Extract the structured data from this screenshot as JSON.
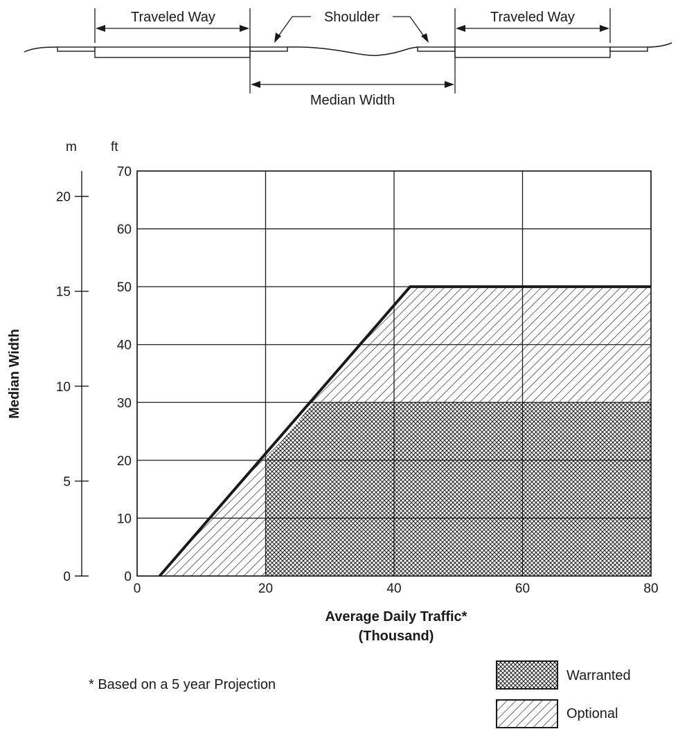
{
  "cross_section": {
    "left_roadway_label": "Traveled Way",
    "shoulder_label": "Shoulder",
    "right_roadway_label": "Traveled Way",
    "median_label": "Median Width"
  },
  "chart_data": {
    "type": "area",
    "title": "",
    "xlabel_line1": "Average Daily Traffic*",
    "xlabel_line2": "(Thousand)",
    "ylabel": "Median Width",
    "y_unit_ft": "ft",
    "y_unit_m": "m",
    "xlim": [
      0,
      80
    ],
    "ylim_ft": [
      0,
      70
    ],
    "ylim_m": [
      0,
      21.336
    ],
    "x_ticks": [
      0,
      20,
      40,
      60,
      80
    ],
    "y_ticks_ft": [
      0,
      10,
      20,
      30,
      40,
      50,
      60,
      70
    ],
    "y_ticks_m": [
      0,
      5,
      10,
      15,
      20
    ],
    "grid": true,
    "boundary_line": {
      "name": "",
      "x": [
        3.5,
        42.5,
        80
      ],
      "y": [
        0,
        50,
        50
      ]
    },
    "series": [
      {
        "name": "Warranted",
        "pattern": "crosshatch",
        "polygon_x": [
          20,
          20,
          27.5,
          80,
          80
        ],
        "polygon_y": [
          0,
          20,
          30,
          30,
          0
        ]
      },
      {
        "name": "Optional",
        "pattern": "diagonal",
        "polygon_x": [
          3.5,
          42.5,
          80,
          80,
          3.5
        ],
        "polygon_y": [
          0,
          50,
          50,
          0,
          0
        ]
      }
    ],
    "legend": {
      "placement": "bottom-right",
      "entries": [
        "Warranted",
        "Optional"
      ]
    },
    "footnote": "* Based on a 5 year Projection",
    "colors": {
      "line": "#1a1a1a",
      "background": "#ffffff"
    }
  }
}
